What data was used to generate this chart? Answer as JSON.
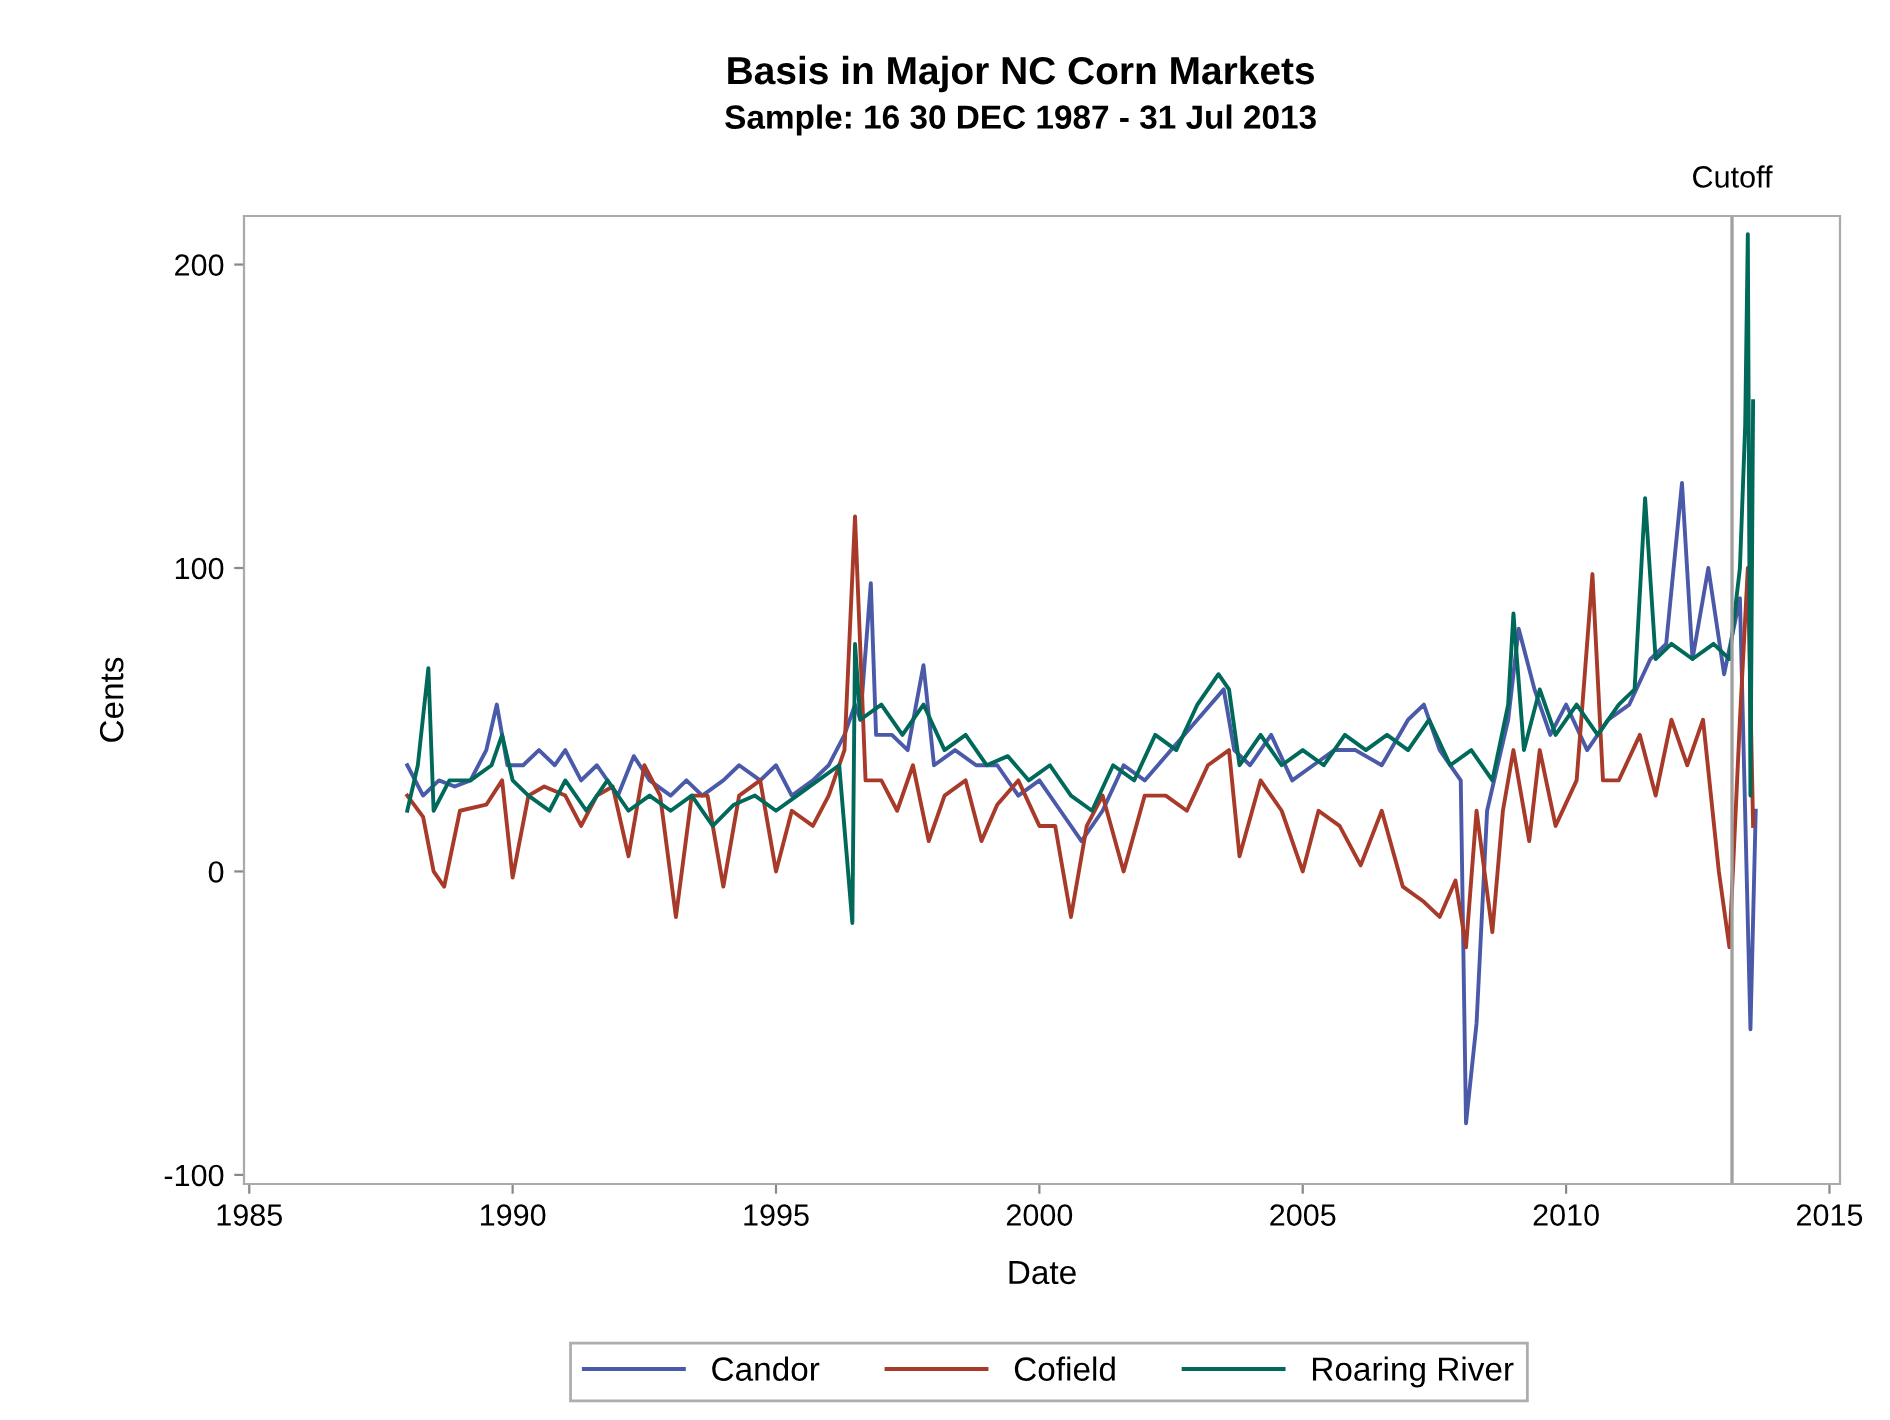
{
  "chart_data": {
    "type": "line",
    "title": "Basis in Major NC Corn Markets",
    "subtitle": "Sample: 16 30 DEC 1987 - 31 Jul 2013",
    "xlabel": "Date",
    "ylabel": "Cents",
    "xlim": [
      1984.9,
      2015.2
    ],
    "ylim": [
      -103,
      216
    ],
    "xticks": [
      1985,
      1990,
      1995,
      2000,
      2005,
      2010,
      2015
    ],
    "yticks": [
      -100,
      0,
      100,
      200
    ],
    "grid": false,
    "legend": "bottom",
    "marker": "none",
    "line_style": "solid",
    "ref_lines": [
      {
        "axis": "x",
        "value": 2013.15,
        "label": "Cutoff",
        "color": "#a0a0a0"
      }
    ],
    "series": [
      {
        "name": "Candor",
        "color": "#4a5aa8",
        "x": [
          1988.0,
          1988.3,
          1988.6,
          1988.9,
          1989.2,
          1989.5,
          1989.7,
          1989.9,
          1990.2,
          1990.5,
          1990.8,
          1991.0,
          1991.3,
          1991.6,
          1992.0,
          1992.3,
          1992.6,
          1993.0,
          1993.3,
          1993.6,
          1994.0,
          1994.3,
          1994.7,
          1995.0,
          1995.3,
          1995.7,
          1996.0,
          1996.3,
          1996.5,
          1996.6,
          1996.8,
          1996.9,
          1997.2,
          1997.5,
          1997.8,
          1998.0,
          1998.4,
          1998.8,
          1999.2,
          1999.6,
          2000.0,
          2000.4,
          2000.8,
          2001.2,
          2001.6,
          2002.0,
          2002.5,
          2003.0,
          2003.5,
          2003.7,
          2004.0,
          2004.4,
          2004.8,
          2005.2,
          2005.6,
          2006.0,
          2006.5,
          2007.0,
          2007.3,
          2007.6,
          2008.0,
          2008.1,
          2008.3,
          2008.5,
          2008.9,
          2009.1,
          2009.4,
          2009.7,
          2010.0,
          2010.4,
          2010.8,
          2011.2,
          2011.6,
          2011.9,
          2012.2,
          2012.4,
          2012.7,
          2013.0,
          2013.3,
          2013.5,
          2013.6
        ],
        "values": [
          35,
          25,
          30,
          28,
          30,
          40,
          55,
          35,
          35,
          40,
          35,
          40,
          30,
          35,
          25,
          38,
          30,
          25,
          30,
          25,
          30,
          35,
          30,
          35,
          25,
          30,
          35,
          45,
          55,
          50,
          95,
          45,
          45,
          40,
          68,
          35,
          40,
          35,
          35,
          25,
          30,
          20,
          10,
          20,
          35,
          30,
          40,
          50,
          60,
          40,
          35,
          45,
          30,
          35,
          40,
          40,
          35,
          50,
          55,
          40,
          30,
          -83,
          -50,
          20,
          50,
          80,
          60,
          45,
          55,
          40,
          50,
          55,
          70,
          75,
          128,
          70,
          100,
          65,
          90,
          -52,
          20
        ]
      },
      {
        "name": "Cofield",
        "color": "#a83a2a",
        "x": [
          1988.0,
          1988.3,
          1988.5,
          1988.7,
          1989.0,
          1989.5,
          1989.8,
          1990.0,
          1990.3,
          1990.6,
          1991.0,
          1991.3,
          1991.6,
          1991.9,
          1992.2,
          1992.5,
          1992.8,
          1993.1,
          1993.4,
          1993.7,
          1994.0,
          1994.3,
          1994.7,
          1995.0,
          1995.3,
          1995.7,
          1996.0,
          1996.3,
          1996.5,
          1996.7,
          1997.0,
          1997.3,
          1997.6,
          1997.9,
          1998.2,
          1998.6,
          1998.9,
          1999.2,
          1999.6,
          2000.0,
          2000.3,
          2000.6,
          2000.9,
          2001.2,
          2001.6,
          2002.0,
          2002.4,
          2002.8,
          2003.2,
          2003.6,
          2003.8,
          2004.2,
          2004.6,
          2005.0,
          2005.3,
          2005.7,
          2006.1,
          2006.5,
          2006.9,
          2007.3,
          2007.6,
          2007.9,
          2008.1,
          2008.3,
          2008.6,
          2008.8,
          2009.0,
          2009.3,
          2009.5,
          2009.8,
          2010.2,
          2010.5,
          2010.7,
          2011.0,
          2011.4,
          2011.7,
          2012.0,
          2012.3,
          2012.6,
          2012.9,
          2013.1,
          2013.3,
          2013.45,
          2013.55
        ],
        "values": [
          25,
          18,
          0,
          -5,
          20,
          22,
          30,
          -2,
          25,
          28,
          25,
          15,
          25,
          28,
          5,
          35,
          25,
          -15,
          25,
          25,
          -5,
          25,
          30,
          0,
          20,
          15,
          25,
          40,
          117,
          30,
          30,
          20,
          35,
          10,
          25,
          30,
          10,
          22,
          30,
          15,
          15,
          -15,
          15,
          25,
          0,
          25,
          25,
          20,
          35,
          40,
          5,
          30,
          20,
          0,
          20,
          15,
          2,
          20,
          -5,
          -10,
          -15,
          -3,
          -25,
          20,
          -20,
          20,
          40,
          10,
          40,
          15,
          30,
          98,
          30,
          30,
          45,
          25,
          50,
          35,
          50,
          0,
          -25,
          50,
          100,
          15
        ]
      },
      {
        "name": "Roaring River",
        "color": "#00695a",
        "x": [
          1988.0,
          1988.2,
          1988.4,
          1988.5,
          1988.8,
          1989.2,
          1989.6,
          1989.8,
          1990.0,
          1990.3,
          1990.7,
          1991.0,
          1991.4,
          1991.8,
          1992.2,
          1992.6,
          1993.0,
          1993.4,
          1993.8,
          1994.2,
          1994.6,
          1995.0,
          1995.4,
          1995.8,
          1996.2,
          1996.45,
          1996.5,
          1996.6,
          1997.0,
          1997.4,
          1997.8,
          1998.2,
          1998.6,
          1999.0,
          1999.4,
          1999.8,
          2000.2,
          2000.6,
          2001.0,
          2001.4,
          2001.8,
          2002.2,
          2002.6,
          2003.0,
          2003.4,
          2003.6,
          2003.8,
          2004.2,
          2004.6,
          2005.0,
          2005.4,
          2005.8,
          2006.2,
          2006.6,
          2007.0,
          2007.4,
          2007.8,
          2008.2,
          2008.6,
          2008.9,
          2009.0,
          2009.2,
          2009.5,
          2009.8,
          2010.2,
          2010.6,
          2011.0,
          2011.3,
          2011.5,
          2011.7,
          2012.0,
          2012.4,
          2012.8,
          2013.1,
          2013.3,
          2013.4,
          2013.45,
          2013.5,
          2013.55
        ],
        "values": [
          20,
          35,
          67,
          20,
          30,
          30,
          35,
          45,
          30,
          25,
          20,
          30,
          20,
          30,
          20,
          25,
          20,
          25,
          15,
          22,
          25,
          20,
          25,
          30,
          35,
          -17,
          75,
          50,
          55,
          45,
          55,
          40,
          45,
          35,
          38,
          30,
          35,
          25,
          20,
          35,
          30,
          45,
          40,
          55,
          65,
          60,
          35,
          45,
          35,
          40,
          35,
          45,
          40,
          45,
          40,
          50,
          35,
          40,
          30,
          55,
          85,
          40,
          60,
          45,
          55,
          45,
          55,
          60,
          123,
          70,
          75,
          70,
          75,
          70,
          100,
          147,
          210,
          25,
          155
        ]
      }
    ]
  }
}
